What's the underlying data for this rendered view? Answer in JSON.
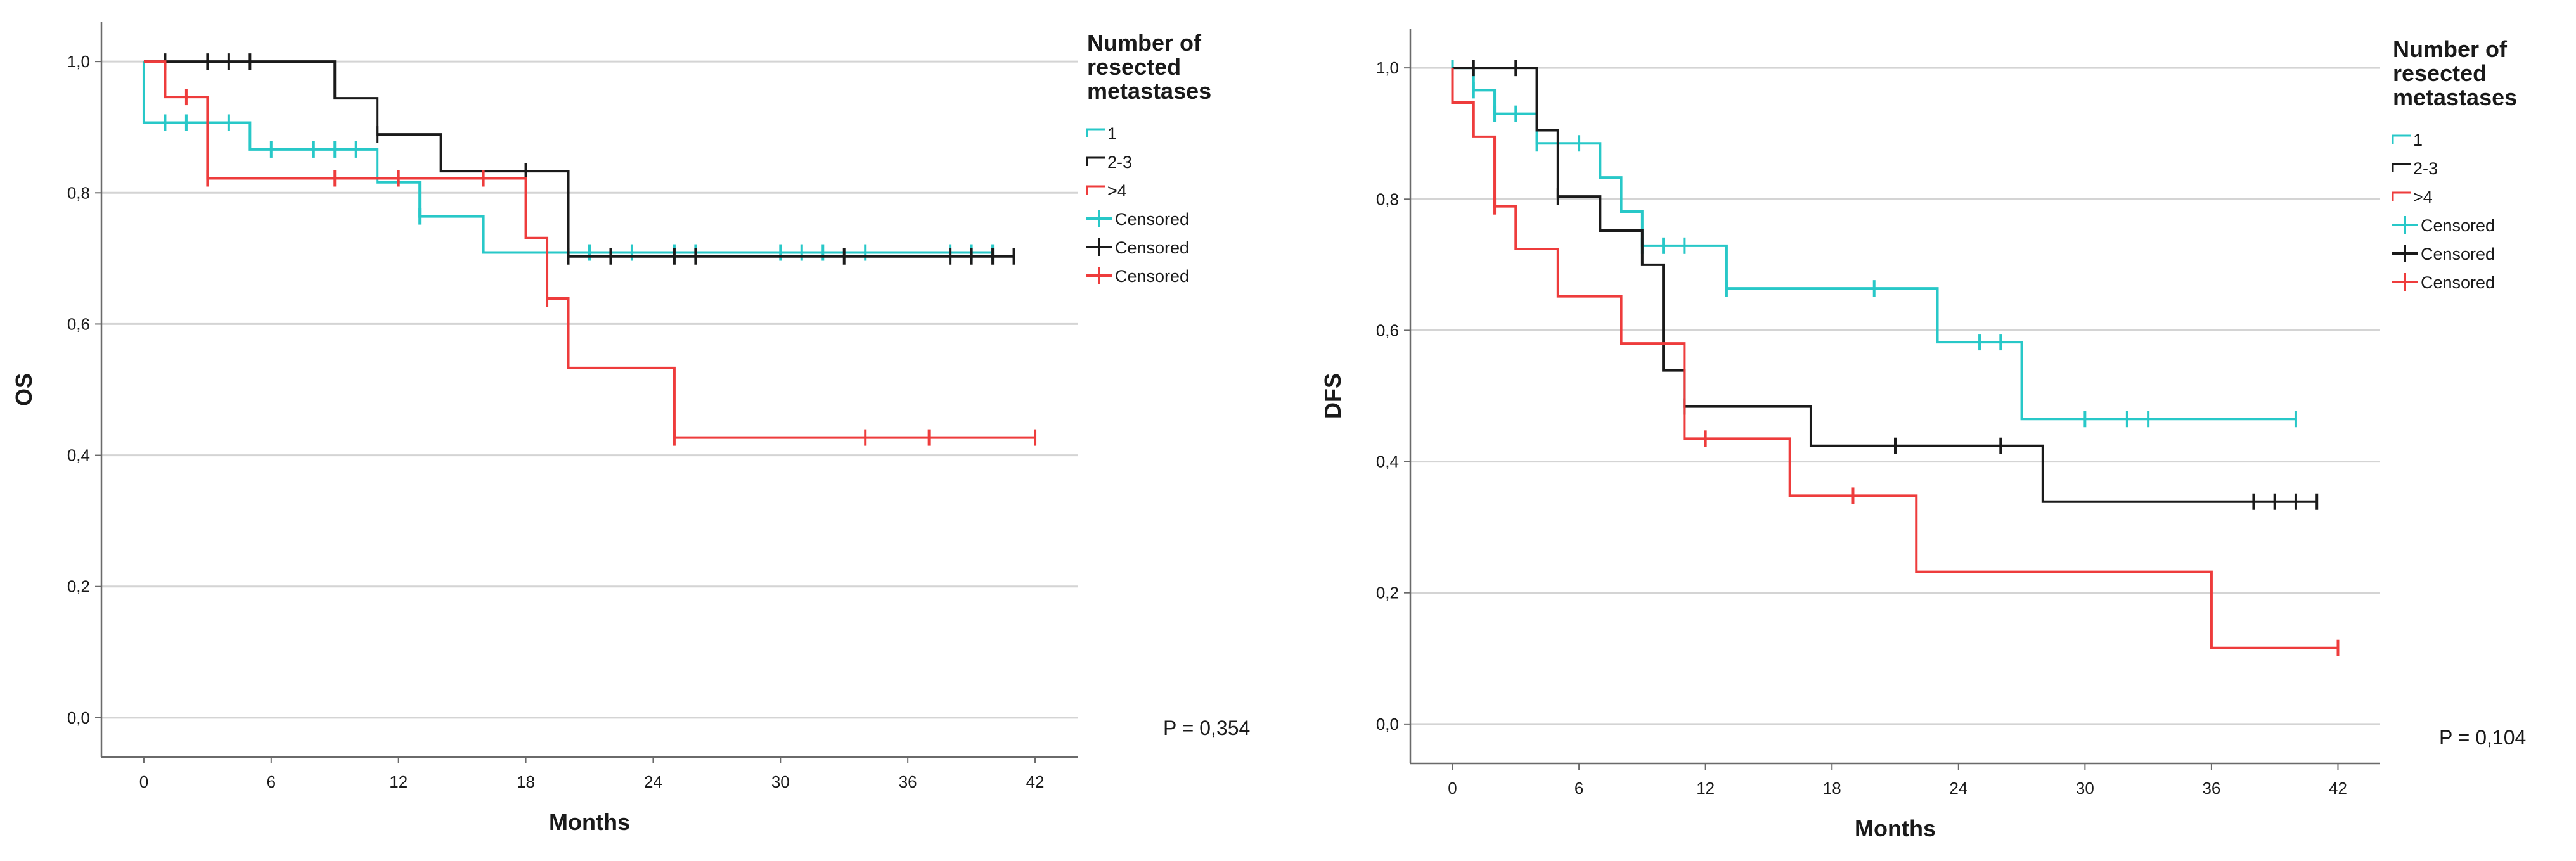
{
  "chart_data": [
    {
      "type": "line",
      "subtype": "kaplan-meier",
      "xlabel": "Months",
      "ylabel": "OS",
      "xlim": [
        -2,
        44
      ],
      "ylim": [
        -0.06,
        1.06
      ],
      "xticks": [
        0,
        6,
        12,
        18,
        24,
        30,
        36,
        42
      ],
      "yticks": [
        0.0,
        0.2,
        0.4,
        0.6,
        0.8,
        1.0
      ],
      "xtick_labels": [
        "0",
        "6",
        "12",
        "18",
        "24",
        "30",
        "36",
        "42"
      ],
      "ytick_labels": [
        "0,0",
        "0,2",
        "0,4",
        "0,6",
        "0,8",
        "1,0"
      ],
      "grid": "horizontal",
      "legend_title": "Number of resected metastases",
      "legend_title_lines": [
        "Number of",
        "resected",
        "metastases"
      ],
      "p_value": "P = 0,354",
      "series": [
        {
          "name": "1",
          "color": "#28c8c8",
          "steps": [
            [
              0,
              1.0
            ],
            [
              0,
              0.907
            ],
            [
              5,
              0.866
            ],
            [
              11,
              0.816
            ],
            [
              13,
              0.764
            ],
            [
              16,
              0.709
            ]
          ],
          "end_x": 40,
          "censored": [
            [
              1,
              0.907
            ],
            [
              2,
              0.907
            ],
            [
              4,
              0.907
            ],
            [
              6,
              0.866
            ],
            [
              8,
              0.866
            ],
            [
              9,
              0.866
            ],
            [
              10,
              0.866
            ],
            [
              13,
              0.764
            ],
            [
              21,
              0.709
            ],
            [
              23,
              0.709
            ],
            [
              25,
              0.709
            ],
            [
              26,
              0.709
            ],
            [
              30,
              0.709
            ],
            [
              31,
              0.709
            ],
            [
              32,
              0.709
            ],
            [
              34,
              0.709
            ],
            [
              38,
              0.709
            ],
            [
              39,
              0.709
            ],
            [
              40,
              0.709
            ]
          ]
        },
        {
          "name": "2-3",
          "color": "#1a1a1a",
          "steps": [
            [
              0,
              1.0
            ],
            [
              9,
              0.944
            ],
            [
              11,
              0.889
            ],
            [
              14,
              0.833
            ],
            [
              20,
              0.703
            ]
          ],
          "end_x": 41,
          "censored": [
            [
              1,
              1.0
            ],
            [
              3,
              1.0
            ],
            [
              4,
              1.0
            ],
            [
              5,
              1.0
            ],
            [
              11,
              0.889
            ],
            [
              18,
              0.833
            ],
            [
              20,
              0.703
            ],
            [
              22,
              0.703
            ],
            [
              25,
              0.703
            ],
            [
              26,
              0.703
            ],
            [
              33,
              0.703
            ],
            [
              38,
              0.703
            ],
            [
              39,
              0.703
            ],
            [
              40,
              0.703
            ],
            [
              41,
              0.703
            ]
          ]
        },
        {
          "name": ">4",
          "color": "#ee3c3c",
          "steps": [
            [
              0,
              1.0
            ],
            [
              1,
              0.946
            ],
            [
              3,
              0.822
            ],
            [
              18,
              0.731
            ],
            [
              19,
              0.639
            ],
            [
              20,
              0.533
            ],
            [
              25,
              0.427
            ]
          ],
          "end_x": 42,
          "censored": [
            [
              2,
              0.946
            ],
            [
              3,
              0.822
            ],
            [
              9,
              0.822
            ],
            [
              12,
              0.822
            ],
            [
              16,
              0.822
            ],
            [
              19,
              0.639
            ],
            [
              25,
              0.427
            ],
            [
              34,
              0.427
            ],
            [
              37,
              0.427
            ],
            [
              42,
              0.427
            ]
          ]
        }
      ],
      "legend_entries": [
        "1",
        "2-3",
        ">4",
        "Censored",
        "Censored",
        "Censored"
      ]
    },
    {
      "type": "line",
      "subtype": "kaplan-meier",
      "xlabel": "Months",
      "ylabel": "DFS",
      "xlim": [
        -2,
        44
      ],
      "ylim": [
        -0.06,
        1.06
      ],
      "xticks": [
        0,
        6,
        12,
        18,
        24,
        30,
        36,
        42
      ],
      "yticks": [
        0.0,
        0.2,
        0.4,
        0.6,
        0.8,
        1.0
      ],
      "xtick_labels": [
        "0",
        "6",
        "12",
        "18",
        "24",
        "30",
        "36",
        "42"
      ],
      "ytick_labels": [
        "0,0",
        "0,2",
        "0,4",
        "0,6",
        "0,8",
        "1,0"
      ],
      "grid": "horizontal",
      "legend_title": "Number of resected metastases",
      "legend_title_lines": [
        "Number of",
        "resected",
        "metastases"
      ],
      "p_value": "P = 0,104",
      "series": [
        {
          "name": "1",
          "color": "#28c8c8",
          "steps": [
            [
              0,
              1.0
            ],
            [
              1,
              0.966
            ],
            [
              2,
              0.93
            ],
            [
              4,
              0.885
            ],
            [
              7,
              0.833
            ],
            [
              8,
              0.781
            ],
            [
              9,
              0.729
            ],
            [
              13,
              0.664
            ],
            [
              23,
              0.582
            ],
            [
              27,
              0.465
            ]
          ],
          "end_x": 40,
          "censored": [
            [
              0,
              1.0
            ],
            [
              1,
              0.966
            ],
            [
              2,
              0.93
            ],
            [
              3,
              0.93
            ],
            [
              4,
              0.885
            ],
            [
              6,
              0.885
            ],
            [
              9,
              0.729
            ],
            [
              10,
              0.729
            ],
            [
              11,
              0.729
            ],
            [
              13,
              0.664
            ],
            [
              20,
              0.664
            ],
            [
              25,
              0.582
            ],
            [
              26,
              0.582
            ],
            [
              30,
              0.465
            ],
            [
              32,
              0.465
            ],
            [
              33,
              0.465
            ],
            [
              40,
              0.465
            ]
          ]
        },
        {
          "name": "2-3",
          "color": "#1a1a1a",
          "steps": [
            [
              0,
              1.0
            ],
            [
              4,
              0.905
            ],
            [
              5,
              0.804
            ],
            [
              7,
              0.752
            ],
            [
              9,
              0.7
            ],
            [
              10,
              0.539
            ],
            [
              11,
              0.484
            ],
            [
              17,
              0.424
            ],
            [
              28,
              0.339
            ]
          ],
          "end_x": 41,
          "censored": [
            [
              1,
              1.0
            ],
            [
              3,
              1.0
            ],
            [
              5,
              0.804
            ],
            [
              11,
              0.484
            ],
            [
              21,
              0.424
            ],
            [
              26,
              0.424
            ],
            [
              38,
              0.339
            ],
            [
              39,
              0.339
            ],
            [
              40,
              0.339
            ],
            [
              41,
              0.339
            ]
          ]
        },
        {
          "name": ">4",
          "color": "#ee3c3c",
          "steps": [
            [
              0,
              1.0
            ],
            [
              0,
              0.947
            ],
            [
              1,
              0.895
            ],
            [
              2,
              0.789
            ],
            [
              3,
              0.724
            ],
            [
              5,
              0.652
            ],
            [
              8,
              0.58
            ],
            [
              11,
              0.435
            ],
            [
              16,
              0.348
            ],
            [
              22,
              0.232
            ],
            [
              36,
              0.116
            ]
          ],
          "end_x": 42,
          "censored": [
            [
              2,
              0.789
            ],
            [
              12,
              0.435
            ],
            [
              19,
              0.348
            ],
            [
              42,
              0.116
            ]
          ]
        }
      ],
      "legend_entries": [
        "1",
        "2-3",
        ">4",
        "Censored",
        "Censored",
        "Censored"
      ]
    }
  ]
}
